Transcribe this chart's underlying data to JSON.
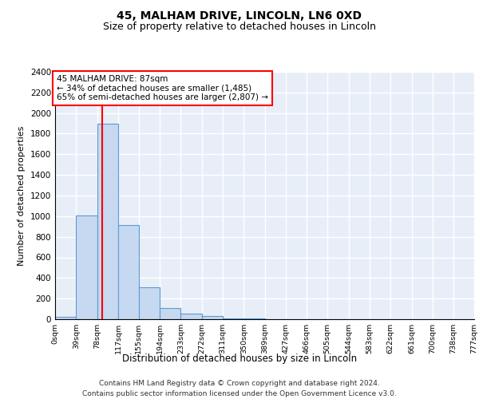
{
  "title1": "45, MALHAM DRIVE, LINCOLN, LN6 0XD",
  "title2": "Size of property relative to detached houses in Lincoln",
  "xlabel": "Distribution of detached houses by size in Lincoln",
  "ylabel": "Number of detached properties",
  "bin_edges": [
    0,
    39,
    78,
    117,
    155,
    194,
    233,
    272,
    311,
    350,
    389,
    427,
    466,
    505,
    544,
    583,
    622,
    661,
    700,
    738,
    777
  ],
  "bar_heights": [
    20,
    1010,
    1900,
    910,
    310,
    105,
    55,
    30,
    10,
    5,
    3,
    2,
    1,
    0,
    0,
    0,
    0,
    0,
    0,
    0
  ],
  "bar_color": "#c6d9f0",
  "bar_edgecolor": "#5b9bd5",
  "red_line_x": 87,
  "annotation_line1": "45 MALHAM DRIVE: 87sqm",
  "annotation_line2": "← 34% of detached houses are smaller (1,485)",
  "annotation_line3": "65% of semi-detached houses are larger (2,807) →",
  "ylim": [
    0,
    2400
  ],
  "yticks": [
    0,
    200,
    400,
    600,
    800,
    1000,
    1200,
    1400,
    1600,
    1800,
    2000,
    2200,
    2400
  ],
  "xtick_labels": [
    "0sqm",
    "39sqm",
    "78sqm",
    "117sqm",
    "155sqm",
    "194sqm",
    "233sqm",
    "272sqm",
    "311sqm",
    "350sqm",
    "389sqm",
    "427sqm",
    "466sqm",
    "505sqm",
    "544sqm",
    "583sqm",
    "622sqm",
    "661sqm",
    "700sqm",
    "738sqm",
    "777sqm"
  ],
  "footer1": "Contains HM Land Registry data © Crown copyright and database right 2024.",
  "footer2": "Contains public sector information licensed under the Open Government Licence v3.0.",
  "plot_bg_color": "#e8eef8",
  "grid_color": "#ffffff",
  "title1_fontsize": 10,
  "title2_fontsize": 9
}
